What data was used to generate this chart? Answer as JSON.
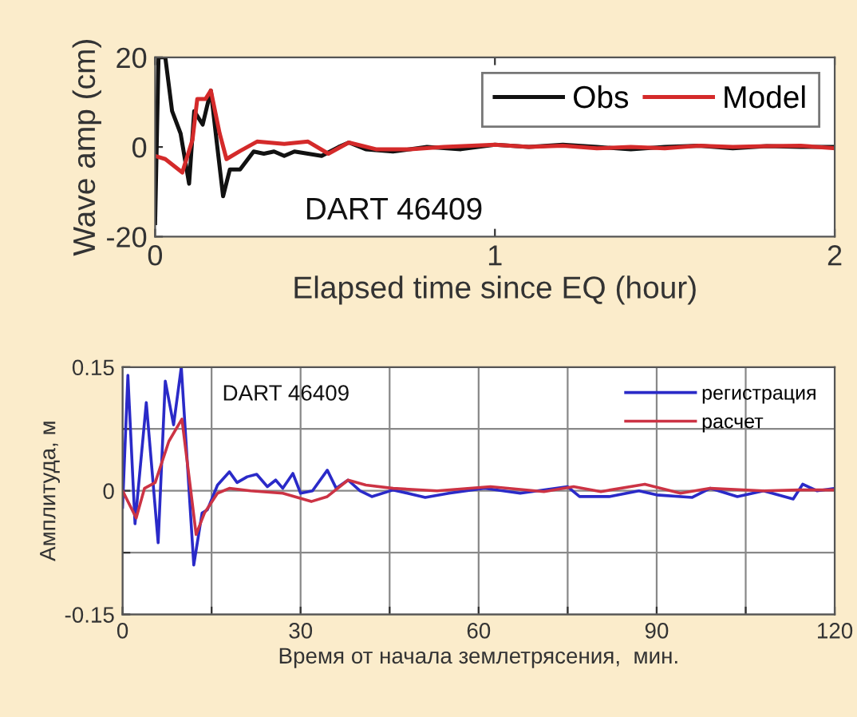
{
  "chart_data": [
    {
      "type": "line",
      "xlabel": "Elapsed time since EQ (hour)",
      "ylabel": "Wave amp (cm)",
      "annotations": [
        "DART 46409"
      ],
      "xlim": [
        0,
        2
      ],
      "ylim": [
        -20,
        20
      ],
      "xticks": [
        0,
        1,
        2
      ],
      "yticks": [
        -20,
        0,
        20
      ],
      "grid": false,
      "legend": "top right",
      "series": [
        {
          "name": "Obs",
          "color": "#111111",
          "x": [
            0,
            0.01,
            0.03,
            0.05,
            0.075,
            0.1,
            0.115,
            0.14,
            0.164,
            0.18,
            0.2,
            0.22,
            0.25,
            0.29,
            0.32,
            0.35,
            0.38,
            0.41,
            0.45,
            0.49,
            0.54,
            0.57,
            0.62,
            0.7,
            0.8,
            0.9,
            1.0,
            1.1,
            1.2,
            1.3,
            1.4,
            1.5,
            1.6,
            1.7,
            1.8,
            1.9,
            2.0
          ],
          "values": [
            -17,
            20,
            20,
            8,
            3,
            -8.2,
            8,
            5,
            12.6,
            2,
            -11,
            -5,
            -5,
            -1,
            -1.5,
            -1,
            -2,
            -1,
            -1.5,
            -2,
            0,
            1,
            -0.5,
            -1,
            0,
            -0.5,
            0.5,
            0,
            0.5,
            0,
            -0.5,
            0,
            0.3,
            -0.3,
            0.2,
            0,
            0
          ]
        },
        {
          "name": "Model",
          "color": "#d42a2a",
          "x": [
            0,
            0.03,
            0.08,
            0.11,
            0.124,
            0.148,
            0.164,
            0.19,
            0.21,
            0.25,
            0.3,
            0.38,
            0.45,
            0.51,
            0.57,
            0.65,
            0.75,
            0.85,
            1.0,
            1.1,
            1.2,
            1.3,
            1.4,
            1.5,
            1.6,
            1.7,
            1.8,
            1.9,
            2.0
          ],
          "values": [
            -2,
            -2.7,
            -5.7,
            1.6,
            10.7,
            10.7,
            12.6,
            3,
            -2.7,
            -0.9,
            1.2,
            0.7,
            1.2,
            -1.5,
            1,
            -0.5,
            -0.5,
            0,
            0.5,
            0,
            0.3,
            -0.3,
            0,
            -0.3,
            0.3,
            0,
            0.2,
            0.3,
            -0.3
          ]
        }
      ]
    },
    {
      "type": "line",
      "xlabel": "Время от начала землетрясения,  мин.",
      "ylabel": "Амплитуда, м",
      "annotations": [
        "DART 46409"
      ],
      "xlim": [
        0,
        120
      ],
      "ylim": [
        -0.15,
        0.15
      ],
      "xticks": [
        0,
        {
          "value": 15,
          "label": null
        },
        30,
        {
          "value": 45,
          "label": null
        },
        60,
        {
          "value": 75,
          "label": null
        },
        90,
        {
          "value": 105,
          "label": null
        },
        120
      ],
      "yticks": [
        -0.15,
        {
          "value": -0.075,
          "label": null
        },
        0,
        {
          "value": 0.075,
          "label": null
        },
        0.15
      ],
      "grid": true,
      "legend": "top right",
      "series": [
        {
          "name": "регистрация",
          "color": "#2a2ac8",
          "x": [
            0,
            0.9,
            2.1,
            4,
            6,
            7.2,
            8.6,
            9.9,
            12,
            13.4,
            14.3,
            16,
            18,
            19.3,
            21,
            22.6,
            24.4,
            25.8,
            27,
            28.7,
            30,
            32,
            34.5,
            36,
            38,
            40,
            42,
            45.6,
            51,
            55,
            61,
            67,
            75,
            77,
            82,
            87,
            90,
            96,
            99,
            103.6,
            108,
            113,
            114.6,
            117,
            120
          ],
          "values": [
            -0.02,
            0.14,
            -0.04,
            0.107,
            -0.063,
            0.133,
            0.08,
            0.15,
            -0.09,
            -0.027,
            -0.023,
            0.007,
            0.023,
            0.01,
            0.017,
            0.02,
            0.005,
            0.013,
            0.003,
            0.021,
            -0.003,
            0,
            0.025,
            0.003,
            0.013,
            0,
            -0.007,
            0.001,
            -0.008,
            -0.003,
            0.003,
            -0.003,
            0.005,
            -0.007,
            -0.007,
            0,
            -0.005,
            -0.008,
            0.003,
            -0.007,
            0,
            -0.01,
            0.008,
            0,
            0.003
          ]
        },
        {
          "name": "расчет",
          "color": "#cc3344",
          "x": [
            0,
            2.3,
            3.7,
            5.5,
            7.8,
            10,
            11.5,
            12.4,
            13.8,
            16,
            18,
            21.6,
            27,
            31.8,
            34.5,
            38,
            41,
            45.6,
            53,
            62,
            71,
            76,
            80.6,
            88,
            94,
            99,
            108,
            114,
            120
          ],
          "values": [
            0,
            -0.033,
            0.003,
            0.01,
            0.06,
            0.087,
            0,
            -0.053,
            -0.027,
            -0.003,
            0.003,
            0,
            -0.003,
            -0.013,
            -0.007,
            0.013,
            0.007,
            0.003,
            0,
            0.005,
            -0.001,
            0.005,
            -0.001,
            0.008,
            -0.003,
            0.003,
            0,
            0.001,
            0.001
          ]
        }
      ]
    }
  ]
}
